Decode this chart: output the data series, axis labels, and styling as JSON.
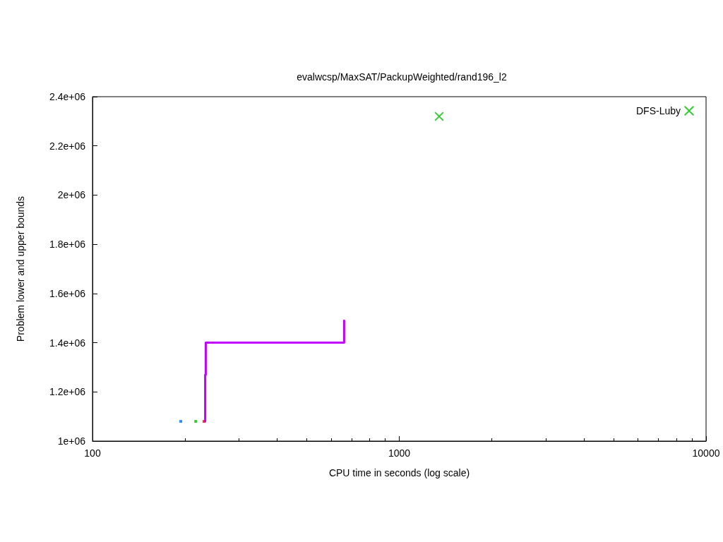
{
  "chart_data": {
    "type": "scatter",
    "title": "evalwcsp/MaxSAT/PackupWeighted/rand196_l2",
    "xlabel": "CPU time in seconds (log scale)",
    "ylabel": "Problem lower and upper bounds",
    "log": "x",
    "grid": false,
    "legend": "top right",
    "xlim": [
      100,
      10000
    ],
    "xticks": [
      100,
      1000,
      10000
    ],
    "ylim": [
      1000000,
      2400000
    ],
    "yticks": [
      {
        "value": 1000000,
        "label": "1e+06"
      },
      {
        "value": 1200000,
        "label": "1.2e+06"
      },
      {
        "value": 1400000,
        "label": "1.4e+06"
      },
      {
        "value": 1600000,
        "label": "1.6e+06"
      },
      {
        "value": 1800000,
        "label": "1.8e+06"
      },
      {
        "value": 2000000,
        "label": "2e+06"
      },
      {
        "value": 2200000,
        "label": "2.2e+06"
      },
      {
        "value": 2400000,
        "label": "2.4e+06"
      }
    ],
    "series": [
      {
        "marker": "square",
        "color": "#0072ff",
        "x": [
          194
        ],
        "values": [
          1080000
        ]
      },
      {
        "marker": "square",
        "color": "#00c000",
        "x": [
          217
        ],
        "values": [
          1080000
        ]
      },
      {
        "marker": "square",
        "color": "#ff0000",
        "x": [
          231
        ],
        "values": [
          1080000
        ]
      },
      {
        "type": "line",
        "marker": "none",
        "color": "#c000ff",
        "x": [
          233,
          233,
          234,
          234,
          661,
          661
        ],
        "values": [
          1080000,
          1270000,
          1270000,
          1400000,
          1400000,
          1490000
        ]
      },
      {
        "marker": "cross",
        "name": "DFS-Luby",
        "color": "#00c000",
        "x": [
          1349
        ],
        "values": [
          2320000
        ]
      }
    ]
  }
}
